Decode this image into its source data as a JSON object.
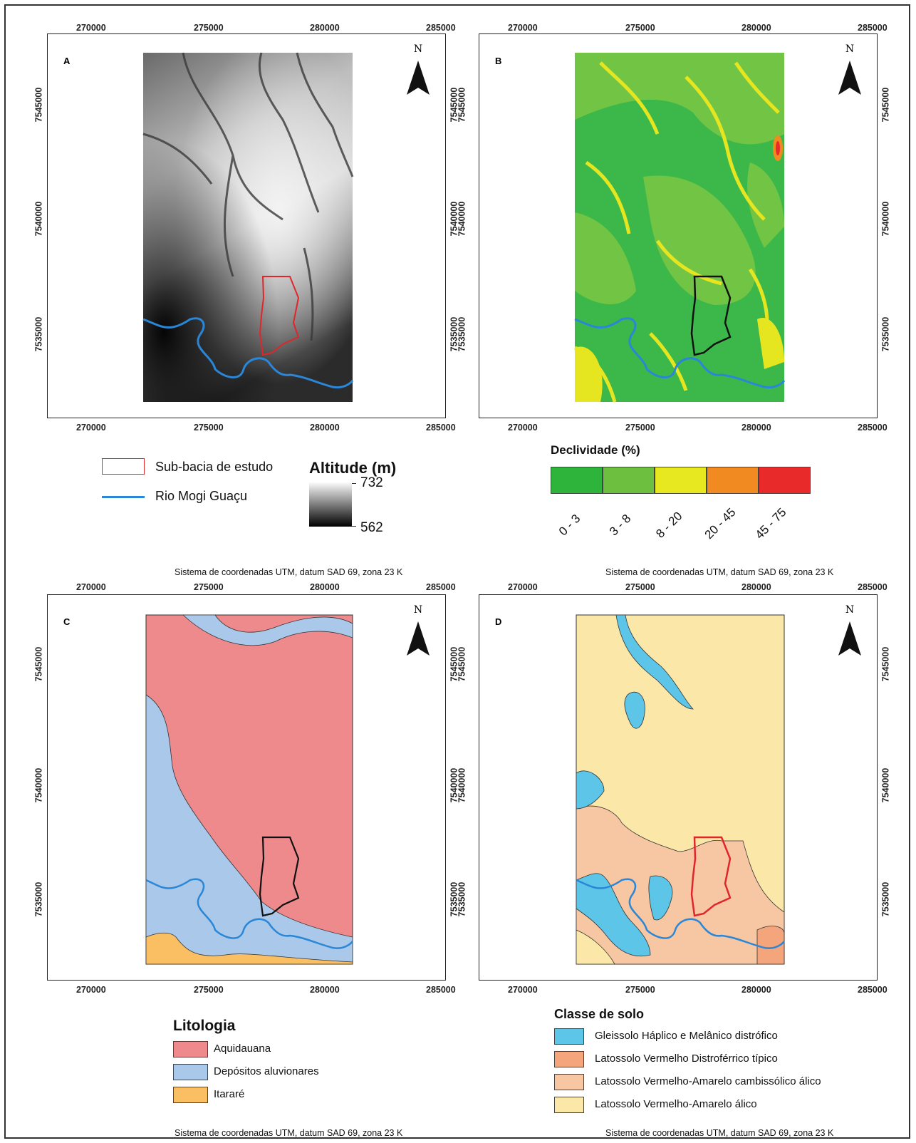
{
  "ticks_x": [
    "270000",
    "275000",
    "280000",
    "285000"
  ],
  "ticks_y": [
    "7545000",
    "7540000",
    "7535000"
  ],
  "north_label": "N",
  "crs_label": "Sistema de coordenadas UTM, datum SAD 69, zona 23 K",
  "panels": {
    "A": {
      "label": "A"
    },
    "B": {
      "label": "B"
    },
    "C": {
      "label": "C"
    },
    "D": {
      "label": "D"
    }
  },
  "legend_a": {
    "subbasin": "Sub-bacia de estudo",
    "river": "Rio Mogi Guaçu",
    "altitude_title": "Altitude (m)",
    "altitude_max": "732",
    "altitude_min": "562"
  },
  "legend_b": {
    "title": "Declividade (%)",
    "classes": [
      {
        "label": "0 - 3",
        "color": "#2eb33b"
      },
      {
        "label": "3 - 8",
        "color": "#6cbf3f"
      },
      {
        "label": "8 - 20",
        "color": "#e8e820"
      },
      {
        "label": "20 - 45",
        "color": "#f28a22"
      },
      {
        "label": "45 - 75",
        "color": "#e82a2a"
      }
    ]
  },
  "legend_c": {
    "title": "Litologia",
    "classes": [
      {
        "label": "Aquidauana",
        "color": "#ef8a8c"
      },
      {
        "label": "Depósitos aluvionares",
        "color": "#a9c8ea"
      },
      {
        "label": "Itararé",
        "color": "#f9bf62"
      }
    ]
  },
  "legend_d": {
    "title": "Classe de solo",
    "classes": [
      {
        "label": "Gleissolo Háplico e Melânico distrófico",
        "color": "#5cc5e8"
      },
      {
        "label": "Latossolo Vermelho Distroférrico típico",
        "color": "#f4a57c"
      },
      {
        "label": "Latossolo Vermelho-Amarelo cambissólico álico",
        "color": "#f7c7a3"
      },
      {
        "label": "Latossolo Vermelho-Amarelo álico",
        "color": "#fbe8a9"
      }
    ]
  },
  "colors": {
    "river": "#2a86d6",
    "subbasin_red": "#e0262b",
    "subbasin_black": "#111111"
  }
}
